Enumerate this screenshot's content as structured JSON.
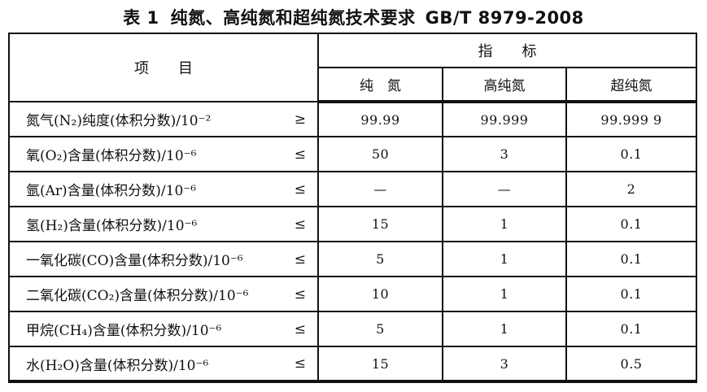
{
  "title": {
    "table_no": "表 1",
    "main": "纯氮、高纯氮和超纯氮技术要求",
    "standard": "GB/T 8979-2008"
  },
  "table": {
    "header": {
      "item_label": "项　　目",
      "indicator_label": "指　　标",
      "columns": [
        "纯　氮",
        "高纯氮",
        "超纯氮"
      ]
    },
    "rows": [
      {
        "label": "氮气(N₂)纯度(体积分数)/10⁻²",
        "relation": "≥",
        "values": [
          "99.99",
          "99.999",
          "99.999 9"
        ]
      },
      {
        "label": "氧(O₂)含量(体积分数)/10⁻⁶",
        "relation": "≤",
        "values": [
          "50",
          "3",
          "0.1"
        ]
      },
      {
        "label": "氩(Ar)含量(体积分数)/10⁻⁶",
        "relation": "≤",
        "values": [
          "—",
          "—",
          "2"
        ]
      },
      {
        "label": "氢(H₂)含量(体积分数)/10⁻⁶",
        "relation": "≤",
        "values": [
          "15",
          "1",
          "0.1"
        ]
      },
      {
        "label": "一氧化碳(CO)含量(体积分数)/10⁻⁶",
        "relation": "≤",
        "values": [
          "5",
          "1",
          "0.1"
        ]
      },
      {
        "label": "二氧化碳(CO₂)含量(体积分数)/10⁻⁶",
        "relation": "≤",
        "values": [
          "10",
          "1",
          "0.1"
        ]
      },
      {
        "label": "甲烷(CH₄)含量(体积分数)/10⁻⁶",
        "relation": "≤",
        "values": [
          "5",
          "1",
          "0.1"
        ]
      },
      {
        "label": "水(H₂O)含量(体积分数)/10⁻⁶",
        "relation": "≤",
        "values": [
          "15",
          "3",
          "0.5"
        ]
      }
    ]
  }
}
